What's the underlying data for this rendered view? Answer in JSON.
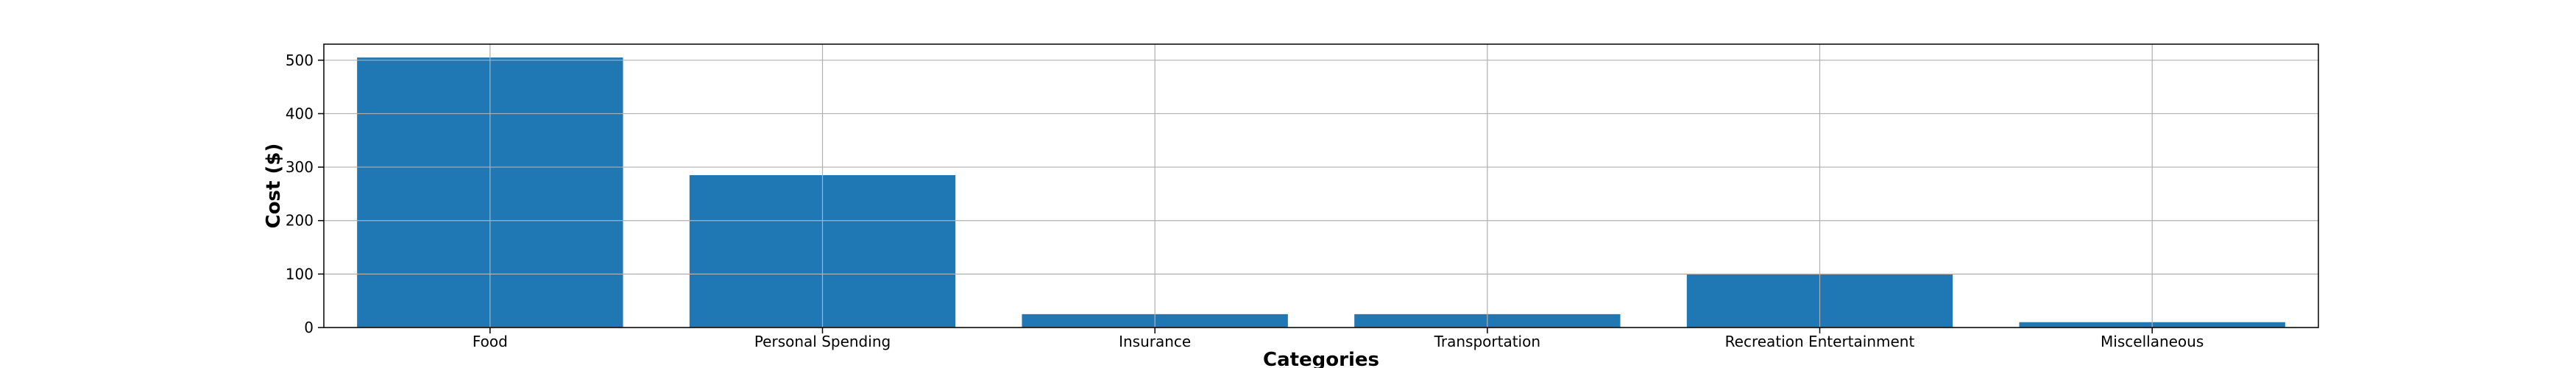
{
  "chart_data": {
    "type": "bar",
    "categories": [
      "Food",
      "Personal Spending",
      "Insurance",
      "Transportation",
      "Recreation Entertainment",
      "Miscellaneous"
    ],
    "values": [
      505,
      285,
      25,
      25,
      100,
      10
    ],
    "title": "",
    "xlabel": "Categories",
    "ylabel": "Cost ($)",
    "ylim": [
      0,
      530
    ],
    "yticks": [
      0,
      100,
      200,
      300,
      400,
      500
    ],
    "grid": true,
    "legend": "none",
    "bar_color": "#1f77b4"
  }
}
